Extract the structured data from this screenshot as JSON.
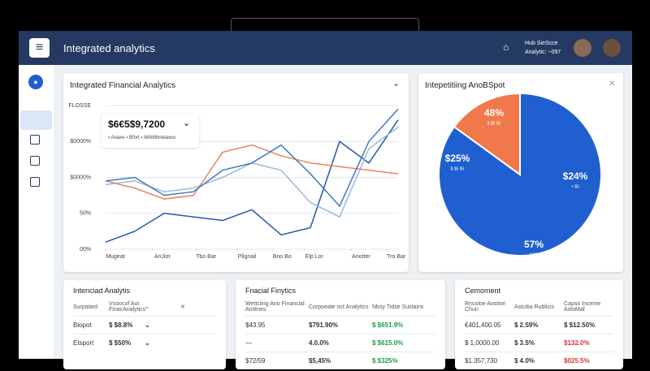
{
  "header": {
    "title": "Integrated analytics",
    "user_name": "Hub SieScce",
    "user_sub": "Analytic: ~097"
  },
  "line_card": {
    "title": "Integrated Financial Analytics",
    "tooltip_value": "$6€5$9,7200",
    "tooltip_legend": "▪ Anaxe ▪ Bfort ▪ Whitithnetaxos"
  },
  "chart_data": [
    {
      "type": "line",
      "x": [
        0,
        1,
        2,
        3,
        4,
        5,
        6,
        7,
        8,
        9,
        10
      ],
      "xlim": [
        0,
        10
      ],
      "xticks": [
        {
          "value": 0,
          "label": "Mugeat"
        },
        {
          "value": 1.6,
          "label": "AnJiot"
        },
        {
          "value": 3.1,
          "label": "Tbo Bar"
        },
        {
          "value": 4.5,
          "label": "Plignail"
        },
        {
          "value": 5.7,
          "label": "Bno Bo"
        },
        {
          "value": 6.8,
          "label": "Elp Lor"
        },
        {
          "value": 8.4,
          "label": "Anotter"
        },
        {
          "value": 9.6,
          "label": "Tro Bar"
        }
      ],
      "ylim": [
        0,
        4
      ],
      "yticks": [
        {
          "value": 0,
          "label": "00%"
        },
        {
          "value": 1,
          "label": "50%"
        },
        {
          "value": 2,
          "label": "$0000%"
        },
        {
          "value": 3,
          "label": "$0000%"
        },
        {
          "value": 4,
          "label": "FLOSSE"
        }
      ],
      "grid": true,
      "series": [
        {
          "color": "#1f5aa6",
          "values": [
            0.2,
            0.5,
            1.0,
            0.9,
            0.8,
            1.1,
            0.4,
            0.6,
            3.0,
            2.4,
            3.6
          ]
        },
        {
          "color": "#9bb8dc",
          "values": [
            1.8,
            1.9,
            1.6,
            1.7,
            2.0,
            2.4,
            2.2,
            1.3,
            0.9,
            2.8,
            3.4
          ]
        },
        {
          "color": "#e8845a",
          "values": [
            1.9,
            1.7,
            1.4,
            1.5,
            2.7,
            2.9,
            2.6,
            2.4,
            2.3,
            2.2,
            2.1
          ]
        },
        {
          "color": "#3d78c2",
          "values": [
            1.9,
            2.0,
            1.5,
            1.6,
            2.2,
            2.4,
            2.9,
            2.1,
            1.2,
            3.0,
            3.9
          ]
        }
      ]
    },
    {
      "type": "pie",
      "title": "Intepetitiing AnoBSpot",
      "values": [
        85,
        15
      ],
      "colors": [
        "#1f5fd0",
        "#f0784a"
      ],
      "annotations": [
        {
          "text": "48%",
          "sub": "$ $5 $5"
        },
        {
          "text": "$25%",
          "sub": "$ $5 $5"
        },
        {
          "text": "$24%",
          "sub": "+ $5"
        },
        {
          "text": "57%",
          "sub": "$ $5"
        }
      ]
    }
  ],
  "tables": [
    {
      "title": "Intenciad Analytis",
      "headers": [
        "Surpatied",
        "Vsoocuf Aut FinacAnalytics",
        "⌄",
        "✕"
      ],
      "rows": [
        [
          "Biopot",
          "$ $8.8%",
          "⌄",
          ""
        ],
        [
          "Etsport",
          "$ $50%",
          "⌄",
          ""
        ]
      ]
    },
    {
      "title": "Fnacial Finytics",
      "headers": [
        "Wettciing Ano Financial Antitnes",
        "Corpoeate nct Analytics",
        "Nbsy Tidse Sustains"
      ],
      "rows": [
        [
          "$43.95",
          "$791.90%",
          "$ $651.9%"
        ],
        [
          "—",
          "4.0.0%",
          "$ $615.0%"
        ],
        [
          "$72/59",
          "$5,45%",
          "$ $325%"
        ]
      ]
    },
    {
      "title": "Cemoment",
      "headers": [
        "Rncoloe Aostion Chun",
        "Astcitia Rublicis",
        "Capso Inceme AstoMaf"
      ],
      "rows": [
        [
          "€401,400.05",
          "$ 2.59%",
          "$ $12.50%"
        ],
        [
          "$ 1,0000.00",
          "$ 3.5%",
          "$132.0%"
        ],
        [
          "$1.357,730",
          "$ 4.0%",
          "$025.5%"
        ]
      ]
    }
  ]
}
